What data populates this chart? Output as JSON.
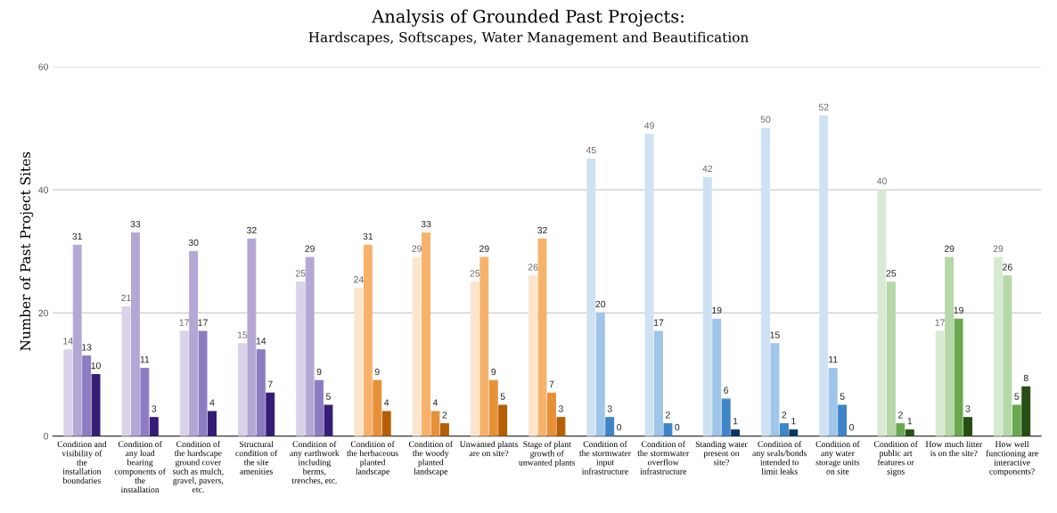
{
  "chart_data": {
    "type": "bar",
    "title": "Analysis of Grounded Past Projects:",
    "subtitle": "Hardscapes, Softscapes, Water Management and Beautification",
    "ylabel": "Number of Past Project Sites",
    "categories": [
      "Condition and visibility of the installation boundaries",
      "Condition of any load bearing components of the installation",
      "Condition of the hardscape ground cover such as mulch, gravel, pavers, etc.",
      "Structural condition of the site amenities",
      "Condition of any earthwork including berms, trenches, etc.",
      "Condition of the herbaceous planted landscape",
      "Condition of the woody planted landscape",
      "Unwanted plants are on site?",
      "Stage of plant growth of unwanted plants",
      "Condition of the stormwater input infrastructure",
      "Condition of the stormwater overflow infrastructure",
      "Standing water present on site?",
      "Condition of any seals/bonds intended to limit leaks",
      "Condition of any water storage units on site",
      "Condition of public art features or signs",
      "How much litter is on the site?",
      "How well functioning are interactive components?"
    ],
    "series": [
      {
        "colors": [
          "#d9d2e9",
          "#d9d2e9",
          "#d9d2e9",
          "#d9d2e9",
          "#d9d2e9",
          "#fce5cd",
          "#fce5cd",
          "#fce5cd",
          "#fce5cd",
          "#cfe2f3",
          "#cfe2f3",
          "#cfe2f3",
          "#cfe2f3",
          "#cfe2f3",
          "#d9ead3",
          "#d9ead3",
          "#d9ead3"
        ],
        "values": [
          14,
          21,
          17,
          15,
          25,
          24,
          29,
          25,
          26,
          45,
          49,
          42,
          50,
          52,
          40,
          17,
          29
        ]
      },
      {
        "colors": [
          "#b4a7d6",
          "#b4a7d6",
          "#b4a7d6",
          "#b4a7d6",
          "#b4a7d6",
          "#f6b26b",
          "#f6b26b",
          "#f6b26b",
          "#f6b26b",
          "#9fc5e8",
          "#9fc5e8",
          "#9fc5e8",
          "#9fc5e8",
          "#9fc5e8",
          "#b6d7a8",
          "#b6d7a8",
          "#b6d7a8"
        ],
        "values": [
          31,
          33,
          30,
          32,
          29,
          31,
          33,
          29,
          32,
          20,
          17,
          19,
          15,
          11,
          25,
          29,
          26
        ]
      },
      {
        "colors": [
          "#8e7cc3",
          "#8e7cc3",
          "#8e7cc3",
          "#8e7cc3",
          "#8e7cc3",
          "#e69138",
          "#e69138",
          "#e69138",
          "#e69138",
          "#3d85c6",
          "#3d85c6",
          "#3d85c6",
          "#3d85c6",
          "#3d85c6",
          "#6aa84f",
          "#6aa84f",
          "#6aa84f"
        ],
        "values": [
          13,
          11,
          17,
          14,
          9,
          9,
          4,
          9,
          7,
          3,
          2,
          6,
          2,
          5,
          2,
          19,
          5
        ]
      },
      {
        "colors": [
          "#351c75",
          "#351c75",
          "#351c75",
          "#351c75",
          "#351c75",
          "#b45f06",
          "#b45f06",
          "#b45f06",
          "#b45f06",
          "#073763",
          "#073763",
          "#073763",
          "#073763",
          "#073763",
          "#274e13",
          "#274e13",
          "#274e13"
        ],
        "values": [
          10,
          3,
          4,
          7,
          5,
          4,
          2,
          5,
          3,
          0,
          0,
          1,
          1,
          0,
          1,
          3,
          8
        ]
      }
    ],
    "ylim": [
      0,
      60
    ],
    "yticks": [
      0,
      20,
      40,
      60
    ],
    "grid": "y",
    "data_labels": true
  }
}
